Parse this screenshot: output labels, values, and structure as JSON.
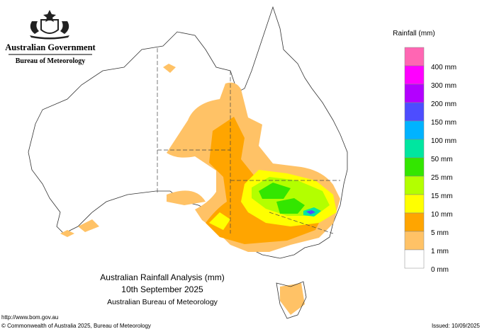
{
  "header": {
    "government": "Australian Government",
    "agency": "Bureau of Meteorology"
  },
  "legend": {
    "title": "Rainfall (mm)",
    "items": [
      {
        "label": null,
        "color": "#ff66b3"
      },
      {
        "label": "400 mm",
        "color": "#ff00ff"
      },
      {
        "label": "300 mm",
        "color": "#b300ff"
      },
      {
        "label": "200 mm",
        "color": "#4d4dff"
      },
      {
        "label": "150 mm",
        "color": "#00b3ff"
      },
      {
        "label": "100 mm",
        "color": "#00e6a0"
      },
      {
        "label": "50 mm",
        "color": "#33e600"
      },
      {
        "label": "25 mm",
        "color": "#b3ff00"
      },
      {
        "label": "15 mm",
        "color": "#ffff00"
      },
      {
        "label": "10 mm",
        "color": "#ffa500"
      },
      {
        "label": "5 mm",
        "color": "#ffc266"
      },
      {
        "label": "1 mm",
        "color": "#ffffff"
      }
    ],
    "zero_label": "0 mm"
  },
  "map": {
    "title": "Australian Rainfall Analysis (mm)",
    "date": "10th September 2025",
    "source": "Australian Bureau of Meteorology"
  },
  "footer": {
    "url": "http://www.bom.gov.au",
    "copyright": "© Commonwealth of Australia 2025, Bureau of Meteorology",
    "issued": "Issued: 10/09/2025"
  }
}
